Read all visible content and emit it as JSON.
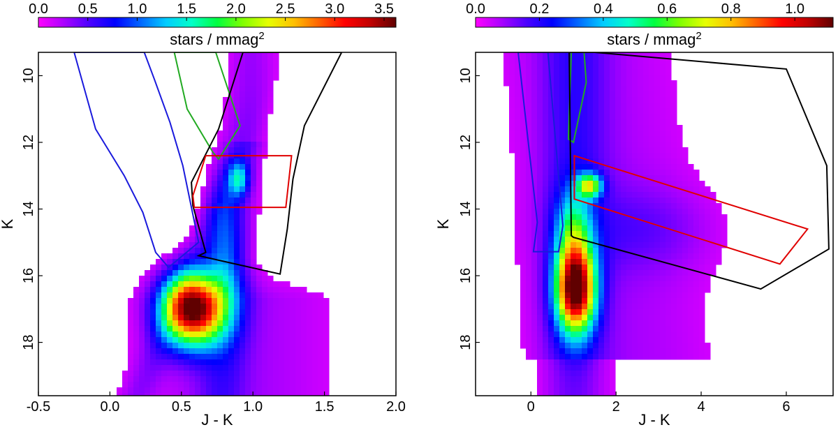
{
  "chart_data": [
    {
      "type": "heatmap",
      "colorbar": {
        "label_base": "stars / mmag",
        "label_exp": "2",
        "ticks": [
          "0.0",
          "0.5",
          "1.0",
          "1.5",
          "2.0",
          "2.5",
          "3.0",
          "3.5"
        ],
        "tick_values": [
          0,
          0.5,
          1.0,
          1.5,
          2.0,
          2.5,
          3.0,
          3.5
        ],
        "range": [
          0,
          3.62
        ],
        "colormap": [
          "#ff00ff",
          "#aa00ff",
          "#4b00ff",
          "#0000ff",
          "#0066ff",
          "#00ccff",
          "#00ffc8",
          "#00ff40",
          "#80ff00",
          "#e6ff00",
          "#ffc000",
          "#ff6000",
          "#ff0000",
          "#c00000",
          "#600000"
        ]
      },
      "xlabel": "J - K",
      "ylabel": "K",
      "xlim": [
        -0.5,
        2.0
      ],
      "ylim": [
        19.6,
        9.3
      ],
      "x_ticks": [
        "-0.5",
        "0.0",
        "0.5",
        "1.0",
        "1.5",
        "2.0"
      ],
      "x_tick_values": [
        -0.5,
        0.0,
        0.5,
        1.0,
        1.5,
        2.0
      ],
      "y_ticks": [
        "10",
        "12",
        "14",
        "16",
        "18"
      ],
      "y_tick_values": [
        10,
        12,
        14,
        16,
        18
      ],
      "density_features": [
        {
          "x": 0.58,
          "y": 17.0,
          "sx": 0.15,
          "sy": 0.75,
          "peak": 3.5
        },
        {
          "x": 0.9,
          "y": 13.1,
          "sx": 0.05,
          "sy": 0.35,
          "peak": 1.0
        },
        {
          "x": 0.8,
          "y": 15.2,
          "sx": 0.09,
          "sy": 1.4,
          "peak": 0.7
        }
      ],
      "selection_polygons": [
        {
          "color": "#1a1adc",
          "points": [
            [
              -0.25,
              9.3
            ],
            [
              -0.1,
              11.6
            ],
            [
              0.1,
              13.0
            ],
            [
              0.23,
              14.1
            ],
            [
              0.32,
              15.3
            ],
            [
              0.41,
              15.75
            ],
            [
              0.62,
              15.0
            ],
            [
              0.51,
              12.7
            ],
            [
              0.42,
              11.4
            ],
            [
              0.31,
              10.1
            ],
            [
              0.24,
              9.3
            ]
          ]
        },
        {
          "color": "#22aa22",
          "points": [
            [
              0.45,
              9.3
            ],
            [
              0.54,
              11.0
            ],
            [
              0.72,
              12.3
            ],
            [
              0.76,
              12.5
            ],
            [
              0.91,
              11.5
            ],
            [
              0.74,
              9.3
            ]
          ]
        },
        {
          "color": "#000000",
          "points": [
            [
              0.93,
              9.3
            ],
            [
              0.76,
              11.6
            ],
            [
              0.57,
              13.2
            ],
            [
              0.58,
              13.9
            ],
            [
              0.67,
              15.3
            ],
            [
              0.62,
              15.4
            ],
            [
              1.19,
              15.95
            ],
            [
              1.24,
              14.6
            ],
            [
              1.28,
              13.1
            ],
            [
              1.36,
              11.5
            ],
            [
              1.62,
              9.3
            ]
          ]
        },
        {
          "color": "#e00000",
          "points": [
            [
              0.67,
              12.4
            ],
            [
              1.27,
              12.4
            ],
            [
              1.23,
              13.95
            ],
            [
              0.59,
              13.95
            ],
            [
              0.58,
              13.6
            ]
          ]
        }
      ]
    },
    {
      "type": "heatmap",
      "colorbar": {
        "label_base": "stars / mmag",
        "label_exp": "2",
        "ticks": [
          "0.0",
          "0.2",
          "0.4",
          "0.6",
          "0.8",
          "1.0"
        ],
        "tick_values": [
          0,
          0.2,
          0.4,
          0.6,
          0.8,
          1.0
        ],
        "range": [
          0,
          1.12
        ],
        "colormap": [
          "#ff00ff",
          "#aa00ff",
          "#4b00ff",
          "#0000ff",
          "#0066ff",
          "#00ccff",
          "#00ffc8",
          "#00ff40",
          "#80ff00",
          "#e6ff00",
          "#ffc000",
          "#ff6000",
          "#ff0000",
          "#c00000",
          "#600000"
        ]
      },
      "xlabel": "J - K",
      "ylabel": "K",
      "xlim": [
        -1.3,
        7.1
      ],
      "ylim": [
        19.6,
        9.3
      ],
      "x_ticks": [
        "0",
        "2",
        "4",
        "6"
      ],
      "x_tick_values": [
        0,
        2,
        4,
        6
      ],
      "y_ticks": [
        "10",
        "12",
        "14",
        "16",
        "18"
      ],
      "y_tick_values": [
        10,
        12,
        14,
        16,
        18
      ],
      "density_features": [
        {
          "x": 1.05,
          "y": 16.4,
          "sx": 0.32,
          "sy": 0.9,
          "peak": 1.05
        },
        {
          "x": 1.38,
          "y": 13.3,
          "sx": 0.2,
          "sy": 0.25,
          "peak": 0.55
        },
        {
          "x": 1.0,
          "y": 14.6,
          "sx": 0.3,
          "sy": 0.85,
          "peak": 0.3
        }
      ],
      "selection_polygons": [
        {
          "color": "#1a1adc",
          "points": [
            [
              -0.3,
              9.3
            ],
            [
              0.15,
              14.4
            ],
            [
              0.06,
              15.28
            ],
            [
              0.65,
              15.28
            ],
            [
              0.75,
              14.5
            ],
            [
              0.4,
              9.3
            ]
          ]
        },
        {
          "color": "#22aa22",
          "points": [
            [
              0.95,
              9.3
            ],
            [
              0.88,
              11.9
            ],
            [
              1.0,
              12.0
            ],
            [
              1.3,
              10.2
            ],
            [
              1.25,
              9.3
            ]
          ]
        },
        {
          "color": "#000000",
          "points": [
            [
              0.9,
              9.3
            ],
            [
              0.95,
              14.8
            ],
            [
              1.0,
              14.85
            ],
            [
              5.4,
              16.4
            ],
            [
              7.0,
              15.2
            ],
            [
              6.95,
              12.7
            ],
            [
              6.0,
              9.8
            ],
            [
              1.5,
              9.3
            ],
            [
              1.2,
              9.3
            ]
          ]
        },
        {
          "color": "#e00000",
          "points": [
            [
              1.02,
              12.4
            ],
            [
              6.5,
              14.6
            ],
            [
              5.85,
              15.65
            ],
            [
              1.02,
              13.7
            ]
          ]
        }
      ]
    }
  ]
}
